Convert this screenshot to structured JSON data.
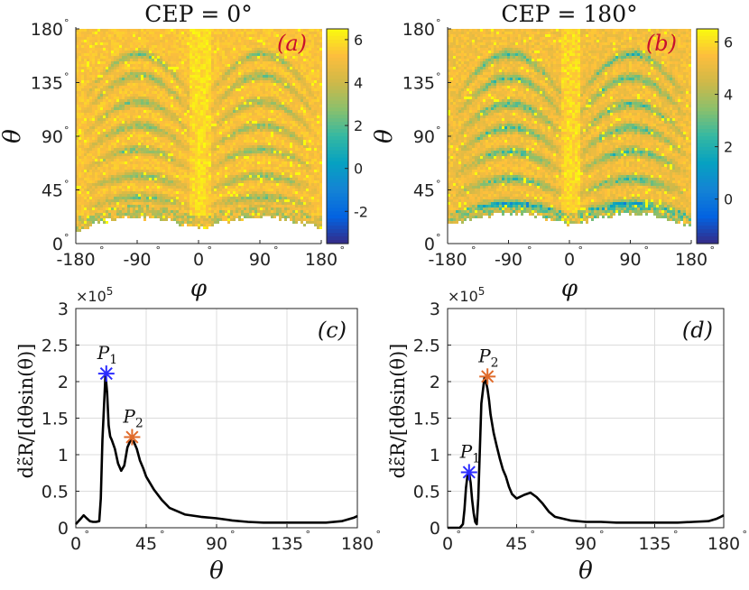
{
  "chart_data": [
    {
      "id": "a",
      "type": "heatmap",
      "title": "CEP = 0°",
      "panel_label": "(a)",
      "xlabel": "φ",
      "ylabel": "θ",
      "xlim": [
        -180,
        180
      ],
      "ylim": [
        0,
        180
      ],
      "x_ticks": [
        -180,
        -90,
        0,
        90,
        180
      ],
      "x_tick_labels": [
        "-180",
        "-90",
        "0",
        "90",
        "180"
      ],
      "y_ticks": [
        0,
        45,
        90,
        135,
        180
      ],
      "y_tick_labels": [
        "0",
        "45",
        "90",
        "135",
        "180"
      ],
      "colorbar": {
        "range": [
          -3.5,
          6.5
        ],
        "ticks": [
          -2,
          0,
          2,
          4,
          6
        ],
        "tick_labels": [
          "-2",
          "0",
          "2",
          "4",
          "6"
        ]
      },
      "lobe_levels": [
        40,
        58,
        80,
        100,
        120,
        142,
        160
      ],
      "lower_edge": 15
    },
    {
      "id": "b",
      "type": "heatmap",
      "title": "CEP = 180°",
      "panel_label": "(b)",
      "xlabel": "φ",
      "ylabel": "θ",
      "xlim": [
        -180,
        180
      ],
      "ylim": [
        0,
        180
      ],
      "x_ticks": [
        -180,
        -90,
        0,
        90,
        180
      ],
      "x_tick_labels": [
        "-180",
        "-90",
        "0",
        "90",
        "180"
      ],
      "y_ticks": [
        0,
        45,
        90,
        135,
        180
      ],
      "y_tick_labels": [
        "0",
        "45",
        "90",
        "135",
        "180"
      ],
      "colorbar": {
        "range": [
          -1.7,
          6.5
        ],
        "ticks": [
          0,
          2,
          4,
          6
        ],
        "tick_labels": [
          "0",
          "2",
          "4",
          "6"
        ]
      },
      "lobe_levels": [
        35,
        55,
        78,
        98,
        118,
        140,
        160
      ],
      "lower_edge": 18
    },
    {
      "id": "c",
      "type": "line",
      "panel_label": "(c)",
      "xlabel": "θ",
      "ylabel": "dε̃R/[dθsin(θ)]",
      "multiplier": "×10^5",
      "xlim": [
        0,
        180
      ],
      "ylim": [
        0,
        300000
      ],
      "x_ticks": [
        0,
        45,
        90,
        135,
        180
      ],
      "x_tick_labels": [
        "0",
        "45",
        "90",
        "135",
        "180"
      ],
      "y_ticks": [
        0,
        50000,
        100000,
        150000,
        200000,
        250000,
        300000
      ],
      "y_tick_labels": [
        "0",
        "0.5",
        "1",
        "1.5",
        "2",
        "2.5",
        "3"
      ],
      "series": [
        {
          "name": "curve",
          "x": [
            0,
            3,
            5,
            7,
            9,
            11,
            13,
            15,
            16,
            17,
            18,
            19,
            20,
            21,
            22,
            23,
            25,
            27,
            29,
            31,
            33,
            35,
            37,
            39,
            41,
            43,
            45,
            50,
            55,
            60,
            70,
            80,
            90,
            100,
            110,
            120,
            130,
            140,
            150,
            160,
            170,
            175,
            178,
            180
          ],
          "y": [
            5000,
            12000,
            17000,
            13000,
            9000,
            8000,
            8000,
            9000,
            40000,
            120000,
            165000,
            210000,
            185000,
            140000,
            125000,
            120000,
            108000,
            88000,
            78000,
            85000,
            110000,
            120000,
            118000,
            108000,
            92000,
            82000,
            70000,
            52000,
            38000,
            27000,
            18000,
            15000,
            13000,
            10000,
            8000,
            7000,
            7000,
            7000,
            7000,
            7000,
            9000,
            12000,
            14000,
            16000
          ]
        }
      ],
      "markers": [
        {
          "label": "P1",
          "sub": "1",
          "x": 19.5,
          "y": 211000,
          "color": "#2b2bff"
        },
        {
          "label": "P2",
          "sub": "2",
          "x": 36,
          "y": 124000,
          "color": "#e06a2a"
        }
      ]
    },
    {
      "id": "d",
      "type": "line",
      "panel_label": "(d)",
      "xlabel": "θ",
      "ylabel": "dε̃R/[dθsin(θ)]",
      "multiplier": "×10^5",
      "xlim": [
        0,
        180
      ],
      "ylim": [
        0,
        300000
      ],
      "x_ticks": [
        0,
        45,
        90,
        135,
        180
      ],
      "x_tick_labels": [
        "0",
        "45",
        "90",
        "135",
        "180"
      ],
      "y_ticks": [
        0,
        50000,
        100000,
        150000,
        200000,
        250000,
        300000
      ],
      "y_tick_labels": [
        "0",
        "0.5",
        "1",
        "1.5",
        "2",
        "2.5",
        "3"
      ],
      "series": [
        {
          "name": "curve",
          "x": [
            0,
            8,
            10,
            11,
            12,
            13,
            14,
            15,
            16,
            17,
            18,
            19,
            20,
            22,
            24,
            25,
            26,
            27,
            28,
            30,
            32,
            34,
            36,
            38,
            40,
            42,
            45,
            50,
            54,
            58,
            62,
            66,
            70,
            80,
            90,
            100,
            110,
            120,
            130,
            140,
            150,
            160,
            170,
            175,
            178,
            180
          ],
          "y": [
            0,
            0,
            5000,
            25000,
            55000,
            72000,
            75000,
            62000,
            38000,
            20000,
            8000,
            5000,
            40000,
            170000,
            205000,
            200000,
            190000,
            175000,
            155000,
            130000,
            112000,
            95000,
            80000,
            70000,
            56000,
            46000,
            40000,
            45000,
            48000,
            42000,
            33000,
            22000,
            15000,
            10000,
            8000,
            8000,
            7000,
            7000,
            7000,
            7000,
            7000,
            8000,
            9000,
            12000,
            15000,
            17000
          ]
        }
      ],
      "markers": [
        {
          "label": "P1",
          "sub": "1",
          "x": 14,
          "y": 76000,
          "color": "#2b2bff"
        },
        {
          "label": "P2",
          "sub": "2",
          "x": 26,
          "y": 207000,
          "color": "#e06a2a"
        }
      ]
    }
  ]
}
